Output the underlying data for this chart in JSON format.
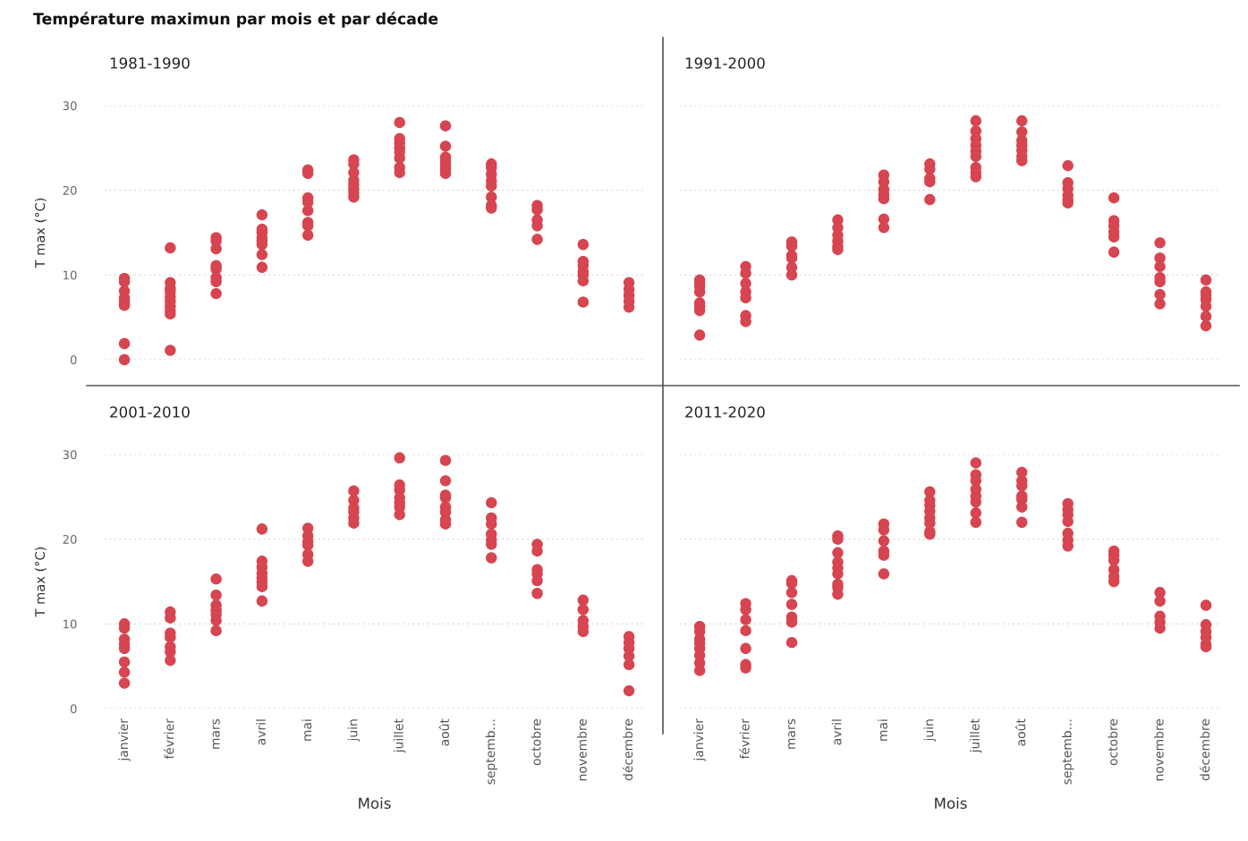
{
  "chart_data": [
    {
      "type": "scatter",
      "title": "Température maximun par mois et par décade",
      "subtitle": "1981-1990",
      "ylabel": "T max (°C)",
      "categories": [
        "janvier",
        "février",
        "mars",
        "avril",
        "mai",
        "juin",
        "juillet",
        "août",
        "septemb...",
        "octobre",
        "novembre",
        "décembre"
      ],
      "series": [
        {
          "color": "#d64550",
          "x": [
            "janvier",
            "janvier",
            "janvier",
            "janvier",
            "janvier",
            "janvier",
            "janvier",
            "janvier",
            "janvier",
            "février",
            "février",
            "février",
            "février",
            "février",
            "février",
            "février",
            "février",
            "février",
            "février",
            "mars",
            "mars",
            "mars",
            "mars",
            "mars",
            "mars",
            "mars",
            "mars",
            "avril",
            "avril",
            "avril",
            "avril",
            "avril",
            "avril",
            "avril",
            "avril",
            "mai",
            "mai",
            "mai",
            "mai",
            "mai",
            "mai",
            "mai",
            "mai",
            "juin",
            "juin",
            "juin",
            "juin",
            "juin",
            "juin",
            "juin",
            "juin",
            "juillet",
            "juillet",
            "juillet",
            "juillet",
            "juillet",
            "juillet",
            "juillet",
            "juillet",
            "août",
            "août",
            "août",
            "août",
            "août",
            "août",
            "août",
            "septemb...",
            "septemb...",
            "septemb...",
            "septemb...",
            "septemb...",
            "septemb...",
            "septemb...",
            "septemb...",
            "octobre",
            "octobre",
            "octobre",
            "octobre",
            "octobre",
            "novembre",
            "novembre",
            "novembre",
            "novembre",
            "novembre",
            "novembre",
            "novembre",
            "décembre",
            "décembre",
            "décembre",
            "décembre",
            "décembre"
          ],
          "values": [
            9.6,
            9.2,
            8.1,
            7.3,
            7.0,
            6.7,
            6.4,
            1.9,
            0.0,
            13.2,
            9.1,
            8.4,
            8.0,
            7.4,
            6.9,
            6.3,
            5.8,
            5.4,
            1.1,
            14.4,
            14.0,
            13.1,
            11.1,
            10.7,
            9.7,
            9.2,
            7.8,
            17.1,
            15.4,
            15.0,
            14.4,
            14.0,
            13.6,
            12.4,
            10.9,
            22.4,
            22.0,
            19.1,
            18.6,
            17.6,
            16.2,
            15.8,
            14.7,
            23.6,
            23.1,
            22.1,
            21.2,
            20.7,
            20.2,
            19.7,
            19.2,
            28.0,
            26.1,
            25.6,
            25.0,
            24.5,
            23.8,
            22.7,
            22.1,
            27.6,
            25.2,
            23.9,
            23.4,
            22.9,
            22.5,
            22.0,
            23.1,
            22.7,
            21.9,
            21.1,
            20.5,
            19.2,
            18.2,
            17.9,
            18.2,
            17.7,
            16.5,
            15.8,
            14.2,
            13.6,
            11.6,
            11.1,
            10.4,
            10.0,
            9.3,
            6.8,
            9.1,
            8.3,
            7.6,
            6.9,
            6.2
          ]
        }
      ],
      "ylim": [
        0,
        30
      ],
      "yticks": [
        0,
        10,
        20,
        30
      ],
      "grid": "y",
      "marker": "circle",
      "tick_labels": "y"
    },
    {
      "type": "scatter",
      "subtitle": "1991-2000",
      "categories": [
        "janvier",
        "février",
        "mars",
        "avril",
        "mai",
        "juin",
        "juillet",
        "août",
        "septemb...",
        "octobre",
        "novembre",
        "décembre"
      ],
      "series": [
        {
          "color": "#d64550",
          "x": [
            "janvier",
            "janvier",
            "janvier",
            "janvier",
            "janvier",
            "janvier",
            "janvier",
            "janvier",
            "février",
            "février",
            "février",
            "février",
            "février",
            "février",
            "février",
            "mars",
            "mars",
            "mars",
            "mars",
            "mars",
            "mars",
            "avril",
            "avril",
            "avril",
            "avril",
            "avril",
            "avril",
            "mai",
            "mai",
            "mai",
            "mai",
            "mai",
            "mai",
            "mai",
            "juin",
            "juin",
            "juin",
            "juin",
            "juin",
            "juillet",
            "juillet",
            "juillet",
            "juillet",
            "juillet",
            "juillet",
            "juillet",
            "juillet",
            "juillet",
            "août",
            "août",
            "août",
            "août",
            "août",
            "août",
            "août",
            "septemb...",
            "septemb...",
            "septemb...",
            "septemb...",
            "septemb...",
            "septemb...",
            "octobre",
            "octobre",
            "octobre",
            "octobre",
            "octobre",
            "octobre",
            "novembre",
            "novembre",
            "novembre",
            "novembre",
            "novembre",
            "novembre",
            "novembre",
            "décembre",
            "décembre",
            "décembre",
            "décembre",
            "décembre",
            "décembre",
            "décembre"
          ],
          "values": [
            9.4,
            9.0,
            8.6,
            8.0,
            6.7,
            6.3,
            5.8,
            2.9,
            11.0,
            10.2,
            9.0,
            8.0,
            7.3,
            5.2,
            4.5,
            13.9,
            13.4,
            12.3,
            12.0,
            10.9,
            10.0,
            16.5,
            15.6,
            14.7,
            14.0,
            13.4,
            13.0,
            21.8,
            21.0,
            20.1,
            19.5,
            19.0,
            16.6,
            15.6,
            23.1,
            22.5,
            21.4,
            21.0,
            18.9,
            28.2,
            27.0,
            26.1,
            25.3,
            24.6,
            24.0,
            22.7,
            22.1,
            21.6,
            28.2,
            26.9,
            25.9,
            25.3,
            24.7,
            24.0,
            23.5,
            22.9,
            20.9,
            20.2,
            19.4,
            18.9,
            18.5,
            19.1,
            16.4,
            15.8,
            15.1,
            14.5,
            12.7,
            13.8,
            12.0,
            11.0,
            9.7,
            9.2,
            7.7,
            6.6,
            9.4,
            8.0,
            7.6,
            7.1,
            6.3,
            5.1,
            4.0
          ]
        }
      ],
      "ylim": [
        0,
        30
      ],
      "yticks": [
        0,
        10,
        20,
        30
      ],
      "grid": "y",
      "marker": "circle",
      "tick_labels": false
    },
    {
      "type": "scatter",
      "subtitle": "2001-2010",
      "xlabel": "Mois",
      "ylabel": "T max (°C)",
      "categories": [
        "janvier",
        "février",
        "mars",
        "avril",
        "mai",
        "juin",
        "juillet",
        "août",
        "septemb...",
        "octobre",
        "novembre",
        "décembre"
      ],
      "series": [
        {
          "color": "#d64550",
          "x": [
            "janvier",
            "janvier",
            "janvier",
            "janvier",
            "janvier",
            "janvier",
            "janvier",
            "janvier",
            "février",
            "février",
            "février",
            "février",
            "février",
            "février",
            "février",
            "mars",
            "mars",
            "mars",
            "mars",
            "mars",
            "mars",
            "mars",
            "avril",
            "avril",
            "avril",
            "avril",
            "avril",
            "avril",
            "avril",
            "avril",
            "mai",
            "mai",
            "mai",
            "mai",
            "mai",
            "mai",
            "juin",
            "juin",
            "juin",
            "juin",
            "juin",
            "juin",
            "juillet",
            "juillet",
            "juillet",
            "juillet",
            "juillet",
            "juillet",
            "juillet",
            "août",
            "août",
            "août",
            "août",
            "août",
            "août",
            "août",
            "août",
            "septemb...",
            "septemb...",
            "septemb...",
            "septemb...",
            "septemb...",
            "septemb...",
            "septemb...",
            "octobre",
            "octobre",
            "octobre",
            "octobre",
            "octobre",
            "octobre",
            "novembre",
            "novembre",
            "novembre",
            "novembre",
            "novembre",
            "décembre",
            "décembre",
            "décembre",
            "décembre",
            "décembre",
            "décembre"
          ],
          "values": [
            10.0,
            9.5,
            8.2,
            7.6,
            7.1,
            5.5,
            4.3,
            3.0,
            11.4,
            10.7,
            8.9,
            8.4,
            7.3,
            6.7,
            5.7,
            15.3,
            13.4,
            12.2,
            11.6,
            11.1,
            10.4,
            9.2,
            21.2,
            17.4,
            16.7,
            16.0,
            15.4,
            14.9,
            14.4,
            12.7,
            21.3,
            20.4,
            19.7,
            19.3,
            18.2,
            17.4,
            25.7,
            24.6,
            23.7,
            23.2,
            22.5,
            21.9,
            29.6,
            26.4,
            25.8,
            24.9,
            24.3,
            23.8,
            22.9,
            29.3,
            26.9,
            25.2,
            24.9,
            23.8,
            23.2,
            22.3,
            21.8,
            24.3,
            22.5,
            21.8,
            20.6,
            19.9,
            19.4,
            17.8,
            19.4,
            18.6,
            16.4,
            15.9,
            15.1,
            13.6,
            12.8,
            11.7,
            10.4,
            9.7,
            9.1,
            8.5,
            7.8,
            7.1,
            6.2,
            5.2,
            2.1
          ]
        }
      ],
      "ylim": [
        0,
        30
      ],
      "yticks": [
        0,
        10,
        20,
        30
      ],
      "grid": "y",
      "marker": "circle"
    },
    {
      "type": "scatter",
      "subtitle": "2011-2020",
      "xlabel": "Mois",
      "categories": [
        "janvier",
        "février",
        "mars",
        "avril",
        "mai",
        "juin",
        "juillet",
        "août",
        "septemb...",
        "octobre",
        "novembre",
        "décembre"
      ],
      "series": [
        {
          "color": "#d64550",
          "x": [
            "janvier",
            "janvier",
            "janvier",
            "janvier",
            "janvier",
            "janvier",
            "janvier",
            "janvier",
            "février",
            "février",
            "février",
            "février",
            "février",
            "février",
            "février",
            "mars",
            "mars",
            "mars",
            "mars",
            "mars",
            "mars",
            "mars",
            "avril",
            "avril",
            "avril",
            "avril",
            "avril",
            "avril",
            "avril",
            "avril",
            "avril",
            "mai",
            "mai",
            "mai",
            "mai",
            "mai",
            "mai",
            "juin",
            "juin",
            "juin",
            "juin",
            "juin",
            "juin",
            "juin",
            "juin",
            "juillet",
            "juillet",
            "juillet",
            "juillet",
            "juillet",
            "juillet",
            "juillet",
            "juillet",
            "août",
            "août",
            "août",
            "août",
            "août",
            "août",
            "août",
            "septemb...",
            "septemb...",
            "septemb...",
            "septemb...",
            "septemb...",
            "septemb...",
            "septemb...",
            "octobre",
            "octobre",
            "octobre",
            "octobre",
            "octobre",
            "octobre",
            "novembre",
            "novembre",
            "novembre",
            "novembre",
            "novembre",
            "décembre",
            "décembre",
            "décembre",
            "décembre",
            "décembre",
            "décembre"
          ],
          "values": [
            9.7,
            9.1,
            8.2,
            7.7,
            7.1,
            6.3,
            5.4,
            4.5,
            12.4,
            11.7,
            10.5,
            9.2,
            7.1,
            5.2,
            4.8,
            15.1,
            14.8,
            13.7,
            12.3,
            10.8,
            10.2,
            7.8,
            20.4,
            20.0,
            18.4,
            17.3,
            16.6,
            15.9,
            14.7,
            14.3,
            13.5,
            21.8,
            21.1,
            19.8,
            18.6,
            18.1,
            15.9,
            25.6,
            24.6,
            24.0,
            23.3,
            22.5,
            21.9,
            20.9,
            20.6,
            29.0,
            27.6,
            26.9,
            25.9,
            25.1,
            24.4,
            23.1,
            22.0,
            27.9,
            26.9,
            26.3,
            25.1,
            24.7,
            23.8,
            22.0,
            24.2,
            23.5,
            22.9,
            22.1,
            20.7,
            19.9,
            19.2,
            18.6,
            18.1,
            17.5,
            16.4,
            15.6,
            15.0,
            13.7,
            12.7,
            10.9,
            10.2,
            9.5,
            12.2,
            9.9,
            9.1,
            8.4,
            7.6,
            7.3
          ]
        }
      ],
      "ylim": [
        0,
        30
      ],
      "yticks": [
        0,
        10,
        20,
        30
      ],
      "grid": "y",
      "marker": "circle",
      "tick_labels": "x"
    }
  ]
}
